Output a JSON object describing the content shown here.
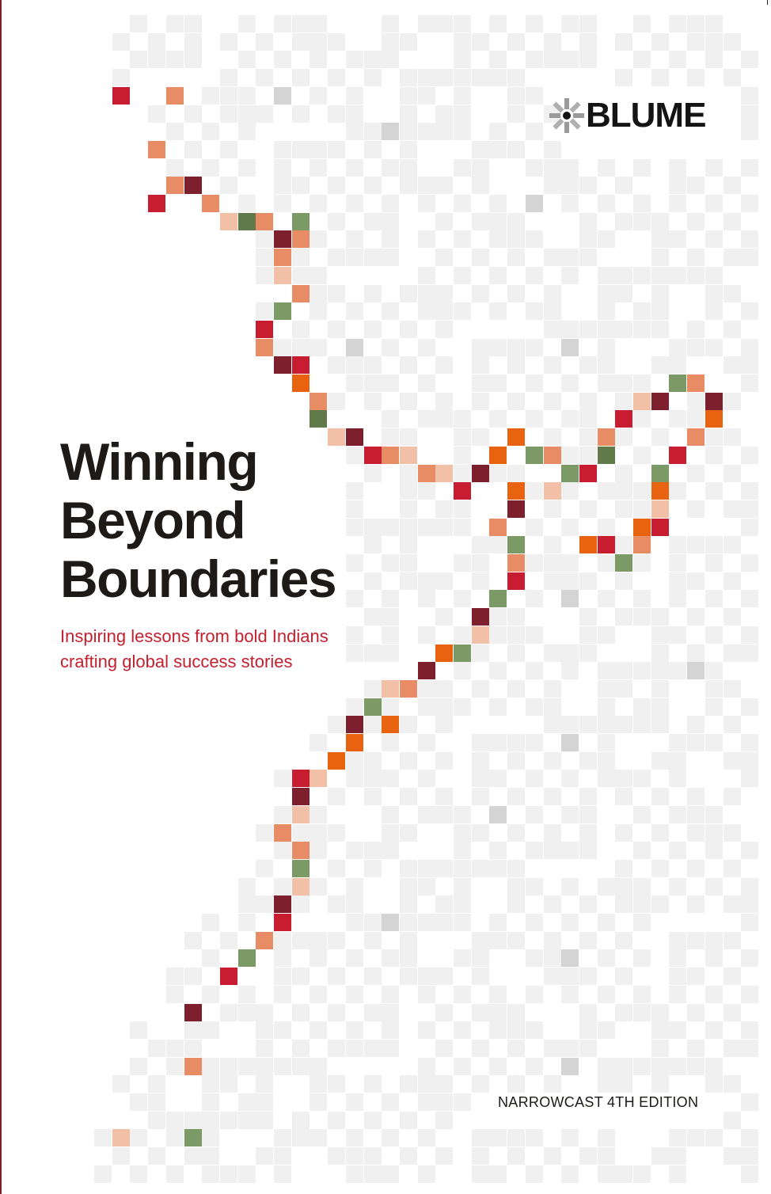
{
  "brand": {
    "name": "BLUME",
    "logo_icon": "starburst-icon"
  },
  "title": {
    "line1": "Winning",
    "line2": "Beyond",
    "line3": "Boundaries"
  },
  "subtitle": {
    "line1": "Inspiring lessons from bold Indians",
    "line2": "crafting global success stories"
  },
  "edition": "NARROWCAST 4TH EDITION",
  "palette": {
    "grid_light": "#f0f0f0",
    "grid_mid": "#d4d4d4",
    "red": "#c81d30",
    "maroon": "#7e1f2e",
    "salmon": "#e88c66",
    "peach": "#f2c0a6",
    "orange": "#e8630f",
    "green": "#7b9a65",
    "dark_green": "#607a4a",
    "title_color": "#1d1a18",
    "subtitle_color": "#c4202e"
  }
}
